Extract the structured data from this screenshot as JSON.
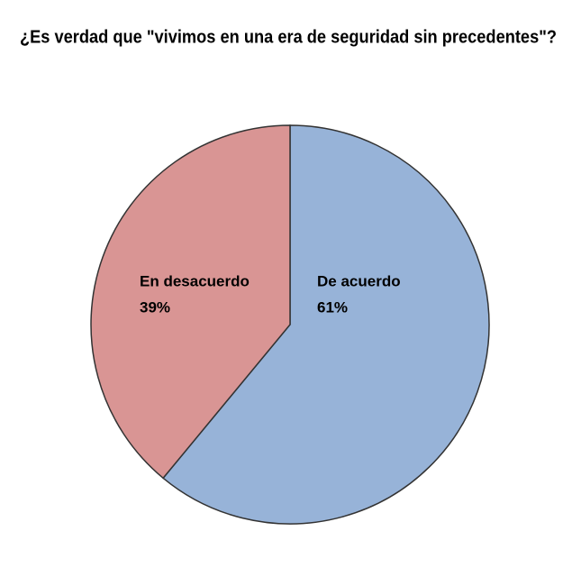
{
  "chart_data": {
    "type": "pie",
    "title": "¿Es verdad que \"vivimos en una era de seguridad sin precedentes\"?",
    "categories": [
      "De acuerdo",
      "En desacuerdo"
    ],
    "values": [
      61,
      39
    ],
    "value_labels": [
      "61%",
      "39%"
    ],
    "colors": [
      "#97b3d8",
      "#d99594"
    ]
  }
}
